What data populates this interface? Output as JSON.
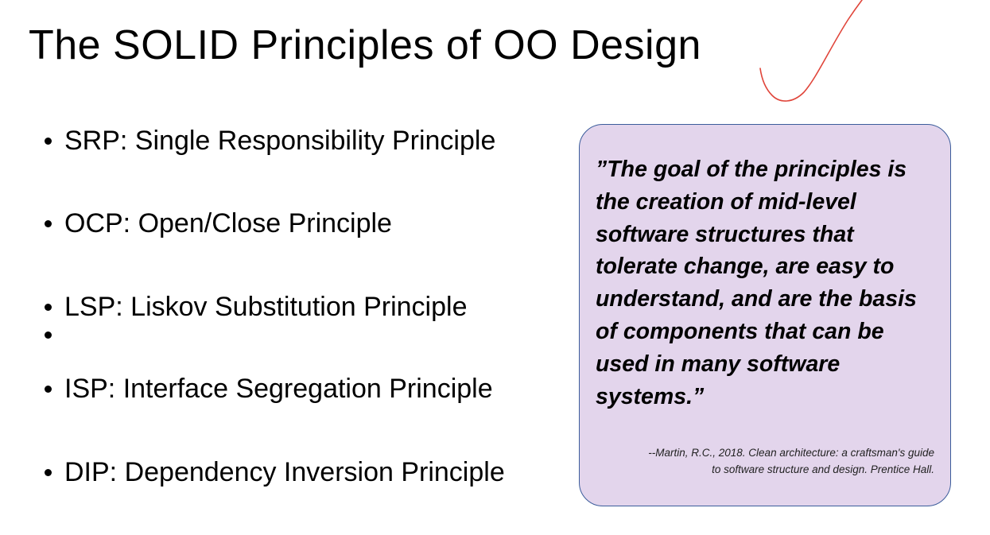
{
  "slide": {
    "title": "The SOLID Principles of OO Design"
  },
  "bullets": [
    {
      "text": "SRP: Single Responsibility Principle"
    },
    {
      "text": "OCP: Open/Close Principle"
    },
    {
      "text": "LSP: Liskov Substitution Principle"
    },
    {
      "text": ""
    },
    {
      "text": "ISP: Interface Segregation Principle"
    },
    {
      "text": "DIP: Dependency Inversion Principle"
    }
  ],
  "quote": {
    "lines": [
      "”The goal of the principles is",
      "the creation of mid-level",
      "software structures that",
      "tolerate change, are easy to",
      "understand, and are the basis",
      "of components that can be",
      "used in many software",
      "systems.”"
    ],
    "citation_lines": [
      "--Martin, R.C., 2018. Clean architecture: a craftsman's guide",
      "to software structure and design. Prentice Hall."
    ]
  },
  "colors": {
    "quote_background": "#e3d5ec",
    "quote_border": "#3b5c9b",
    "annotation_ink": "#e0453a"
  },
  "annotation": {
    "icon": "checkmark-icon"
  }
}
